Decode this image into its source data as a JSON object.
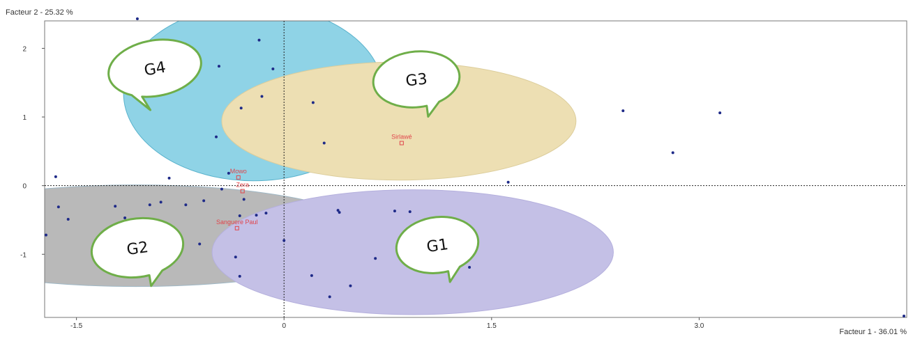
{
  "chart_data": {
    "type": "scatter",
    "xlabel": "Facteur 1  -  36.01 %",
    "ylabel": "Facteur 2  -  25.32 %",
    "xlim": [
      -1.73,
      4.5
    ],
    "ylim": [
      -1.92,
      2.4
    ],
    "x_ticks": [
      -1.5,
      0,
      1.5,
      3.0
    ],
    "y_ticks": [
      -1,
      0,
      1,
      2
    ],
    "x_tick_labels": [
      "-1.5",
      "0",
      "1.5",
      "3.0"
    ],
    "y_tick_labels": [
      "-1",
      "0",
      "1",
      "2"
    ],
    "reference_lines": {
      "x": 0,
      "y": 0,
      "style": "dashed"
    },
    "grid": false,
    "points": [
      {
        "x": -1.06,
        "y": 2.43
      },
      {
        "x": -0.47,
        "y": 1.74
      },
      {
        "x": -0.18,
        "y": 2.12
      },
      {
        "x": -0.08,
        "y": 1.7
      },
      {
        "x": -0.16,
        "y": 1.3
      },
      {
        "x": -0.31,
        "y": 1.13
      },
      {
        "x": -0.49,
        "y": 0.71
      },
      {
        "x": 0.21,
        "y": 1.21
      },
      {
        "x": 0.29,
        "y": 0.62
      },
      {
        "x": 2.45,
        "y": 1.09
      },
      {
        "x": 3.15,
        "y": 1.06
      },
      {
        "x": 2.81,
        "y": 0.48
      },
      {
        "x": 1.62,
        "y": 0.05
      },
      {
        "x": -1.65,
        "y": 0.13
      },
      {
        "x": -0.83,
        "y": 0.11
      },
      {
        "x": -0.4,
        "y": 0.18
      },
      {
        "x": -0.45,
        "y": -0.05
      },
      {
        "x": -1.63,
        "y": -0.31
      },
      {
        "x": -1.56,
        "y": -0.49
      },
      {
        "x": -1.22,
        "y": -0.3
      },
      {
        "x": -1.15,
        "y": -0.47
      },
      {
        "x": -0.97,
        "y": -0.28
      },
      {
        "x": -0.89,
        "y": -0.24
      },
      {
        "x": -0.71,
        "y": -0.28
      },
      {
        "x": -0.58,
        "y": -0.22
      },
      {
        "x": -0.29,
        "y": -0.2
      },
      {
        "x": -0.2,
        "y": -0.43
      },
      {
        "x": -0.13,
        "y": -0.4
      },
      {
        "x": -0.32,
        "y": -0.44
      },
      {
        "x": -0.61,
        "y": -0.85
      },
      {
        "x": -0.35,
        "y": -1.04
      },
      {
        "x": -0.32,
        "y": -1.32
      },
      {
        "x": -1.72,
        "y": -0.72
      },
      {
        "x": 0.0,
        "y": -0.8
      },
      {
        "x": 0.39,
        "y": -0.36
      },
      {
        "x": 0.4,
        "y": -0.39
      },
      {
        "x": 0.8,
        "y": -0.37
      },
      {
        "x": 0.91,
        "y": -0.38
      },
      {
        "x": 0.66,
        "y": -1.06
      },
      {
        "x": 0.2,
        "y": -1.31
      },
      {
        "x": 0.48,
        "y": -1.46
      },
      {
        "x": 0.33,
        "y": -1.62
      },
      {
        "x": 1.34,
        "y": -1.19
      },
      {
        "x": 4.48,
        "y": -1.9
      }
    ],
    "individuals": [
      {
        "label": "Mowo",
        "x": -0.33,
        "y": 0.12
      },
      {
        "label": "Zera",
        "x": -0.3,
        "y": -0.08
      },
      {
        "label": "Sanguere Paul",
        "x": -0.34,
        "y": -0.62
      },
      {
        "label": "Sirlawé",
        "x": 0.85,
        "y": 0.62
      }
    ],
    "groups": [
      {
        "label": "G4",
        "cx": -0.22,
        "cy": 1.35,
        "rx": 0.94,
        "ry": 1.28,
        "color": "#8fd3e6",
        "stroke": "#59b2cc",
        "tail": "left"
      },
      {
        "label": "G3",
        "cx": 0.83,
        "cy": 0.94,
        "rx": 1.28,
        "ry": 0.86,
        "color": "#eddfb3",
        "stroke": "#dccd9b",
        "tail": "down"
      },
      {
        "label": "G2",
        "cx": -1.07,
        "cy": -0.73,
        "rx": 1.72,
        "ry": 0.74,
        "color": "#b9b9b9",
        "stroke": "#9fb8c6",
        "tail": "down"
      },
      {
        "label": "G1",
        "cx": 0.93,
        "cy": -0.97,
        "rx": 1.45,
        "ry": 0.91,
        "color": "#c4c0e6",
        "stroke": "#b4afdd",
        "tail": "down"
      }
    ],
    "colors": {
      "point": "#1e2a88",
      "individual": "#e0454b",
      "callout_border": "#6fae49",
      "frame": "#777777"
    }
  }
}
